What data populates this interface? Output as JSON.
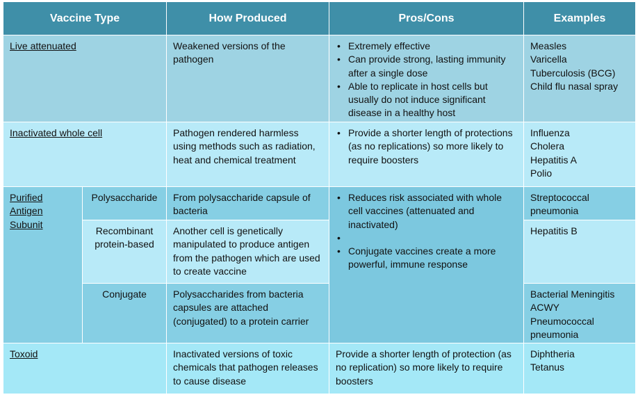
{
  "headers": [
    "Vaccine Type",
    "How Produced",
    "Pros/Cons",
    "Examples"
  ],
  "rows": {
    "live": {
      "type": "Live attenuated",
      "produced": "Weakened versions of the pathogen",
      "pros": [
        "Extremely effective",
        "Can provide strong, lasting immunity after a single dose",
        "Able to replicate in host cells but usually do not induce significant disease in a healthy host"
      ],
      "examples": [
        "Measles",
        "Varicella",
        "Tuberculosis (BCG)",
        "Child flu nasal spray"
      ]
    },
    "inactivated": {
      "type": "Inactivated whole cell",
      "produced": "Pathogen rendered harmless using methods such as radiation, heat and chemical treatment",
      "pros": [
        "Provide a shorter length of protections (as no replications) so more likely to require boosters"
      ],
      "examples": [
        "Influenza",
        "Cholera",
        "Hepatitis A",
        "Polio"
      ]
    },
    "subunit": {
      "type_lines": [
        "Purified",
        "Antigen",
        "Subunit"
      ],
      "pros": [
        "Reduces risk associated with whole cell vaccines (attenuated and inactivated)",
        "Conjugate vaccines create a more powerful, immune response"
      ],
      "polysaccharide": {
        "subtype": "Polysaccharide",
        "produced": "From polysaccharide capsule of bacteria",
        "examples": [
          "Streptococcal pneumonia"
        ]
      },
      "recombinant": {
        "subtype_lines": [
          "Recombinant",
          "protein-based"
        ],
        "produced": "Another cell is genetically manipulated to produce antigen from the pathogen which are used to create vaccine",
        "examples": [
          "Hepatitis B"
        ]
      },
      "conjugate": {
        "subtype": "Conjugate",
        "produced": "Polysaccharides from bacteria capsules are attached (conjugated) to a protein carrier",
        "examples": [
          "Bacterial Meningitis ACWY",
          "Pneumococcal pneumonia"
        ]
      }
    },
    "toxoid": {
      "type": "Toxoid",
      "produced": "Inactivated versions of toxic chemicals that pathogen releases to cause disease",
      "pros": "Provide a shorter length of protection (as no replication) so more likely to require boosters",
      "examples": [
        "Diphtheria",
        "Tetanus"
      ]
    }
  }
}
